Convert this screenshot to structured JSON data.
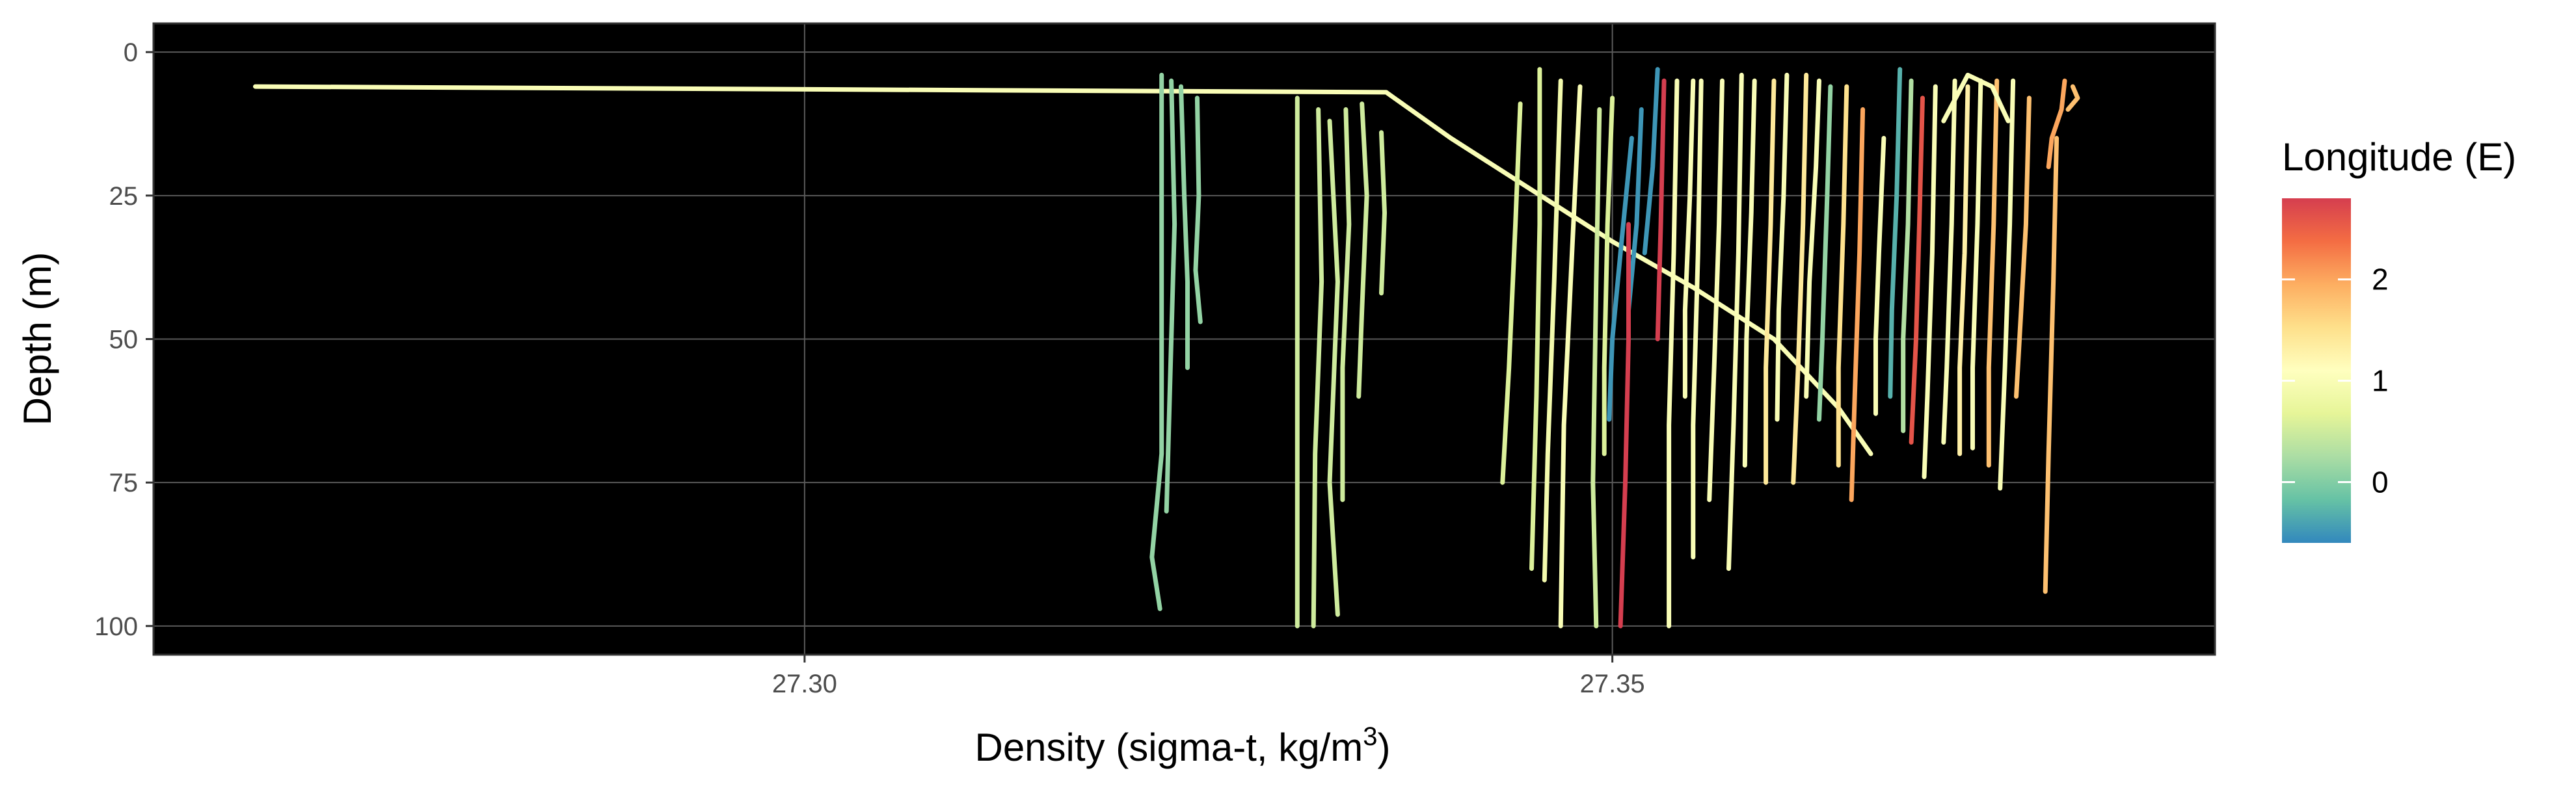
{
  "chart_data": {
    "type": "line",
    "xlabel_main": "Density (sigma-t, kg/m",
    "xlabel_sup": "3",
    "xlabel_end": ")",
    "ylabel": "Depth (m)",
    "xlim": [
      27.2597,
      27.3873
    ],
    "ylim": [
      105,
      -5
    ],
    "y_reversed": true,
    "x_ticks": [
      27.3,
      27.35
    ],
    "x_tick_labels": [
      "27.30",
      "27.35"
    ],
    "y_ticks": [
      0,
      25,
      50,
      75,
      100
    ],
    "y_tick_labels": [
      "0",
      "25",
      "50",
      "75",
      "100"
    ],
    "grid": true,
    "background": "#000000",
    "grid_color": "#5a5a5a",
    "legend": {
      "title": "Longitude (E)",
      "position": "right",
      "range": [
        -0.6,
        2.8
      ],
      "ticks": [
        0,
        1,
        2
      ],
      "tick_labels": [
        "0",
        "1",
        "2"
      ],
      "palette": [
        "#3288bd",
        "#66c2a5",
        "#abdda4",
        "#e6f598",
        "#ffffbf",
        "#fee08b",
        "#fdae61",
        "#f46d43",
        "#d53e4f"
      ]
    },
    "series": [
      {
        "lon": 1.0,
        "points": [
          [
            27.266,
            6
          ],
          [
            27.336,
            7
          ],
          [
            27.3365,
            8
          ],
          [
            27.34,
            15
          ],
          [
            27.345,
            24
          ],
          [
            27.35,
            33
          ],
          [
            27.355,
            41
          ],
          [
            27.36,
            50
          ],
          [
            27.364,
            62
          ],
          [
            27.366,
            70
          ]
        ]
      },
      {
        "lon": 0.1,
        "points": [
          [
            27.3221,
            4
          ],
          [
            27.3221,
            20
          ],
          [
            27.3221,
            45
          ],
          [
            27.3221,
            70
          ],
          [
            27.3215,
            88
          ],
          [
            27.322,
            97
          ]
        ]
      },
      {
        "lon": 0.1,
        "points": [
          [
            27.3227,
            5
          ],
          [
            27.3229,
            30
          ],
          [
            27.3226,
            60
          ],
          [
            27.3224,
            80
          ]
        ]
      },
      {
        "lon": 0.1,
        "points": [
          [
            27.3233,
            6
          ],
          [
            27.3235,
            25
          ],
          [
            27.3237,
            40
          ],
          [
            27.3237,
            55
          ]
        ]
      },
      {
        "lon": 0.1,
        "points": [
          [
            27.3243,
            8
          ],
          [
            27.3244,
            25
          ],
          [
            27.3242,
            38
          ],
          [
            27.3245,
            47
          ]
        ]
      },
      {
        "lon": 0.5,
        "points": [
          [
            27.3305,
            8
          ],
          [
            27.3305,
            40
          ],
          [
            27.3305,
            70
          ],
          [
            27.3305,
            100
          ]
        ]
      },
      {
        "lon": 0.5,
        "points": [
          [
            27.3318,
            10
          ],
          [
            27.332,
            40
          ],
          [
            27.3316,
            70
          ],
          [
            27.3315,
            100
          ]
        ]
      },
      {
        "lon": 0.5,
        "points": [
          [
            27.3325,
            12
          ],
          [
            27.333,
            40
          ],
          [
            27.3325,
            75
          ],
          [
            27.333,
            98
          ]
        ]
      },
      {
        "lon": 0.5,
        "points": [
          [
            27.3335,
            10
          ],
          [
            27.3337,
            30
          ],
          [
            27.3333,
            55
          ],
          [
            27.3333,
            78
          ]
        ]
      },
      {
        "lon": 0.5,
        "points": [
          [
            27.3345,
            9
          ],
          [
            27.3348,
            25
          ],
          [
            27.3345,
            45
          ],
          [
            27.3343,
            60
          ]
        ]
      },
      {
        "lon": 0.5,
        "points": [
          [
            27.3357,
            14
          ],
          [
            27.3359,
            28
          ],
          [
            27.3357,
            42
          ]
        ]
      },
      {
        "lon": 0.6,
        "points": [
          [
            27.3443,
            9
          ],
          [
            27.344,
            30
          ],
          [
            27.3436,
            55
          ],
          [
            27.3432,
            75
          ]
        ]
      },
      {
        "lon": 0.6,
        "points": [
          [
            27.3455,
            3
          ],
          [
            27.3455,
            30
          ],
          [
            27.3453,
            60
          ],
          [
            27.345,
            90
          ]
        ]
      },
      {
        "lon": 0.9,
        "points": [
          [
            27.3468,
            5
          ],
          [
            27.3464,
            40
          ],
          [
            27.346,
            70
          ],
          [
            27.3458,
            92
          ]
        ]
      },
      {
        "lon": 1.0,
        "points": [
          [
            27.348,
            6
          ],
          [
            27.3475,
            35
          ],
          [
            27.347,
            65
          ],
          [
            27.3468,
            100
          ]
        ]
      },
      {
        "lon": 0.5,
        "points": [
          [
            27.3492,
            10
          ],
          [
            27.349,
            40
          ],
          [
            27.3488,
            75
          ],
          [
            27.349,
            100
          ]
        ]
      },
      {
        "lon": 0.6,
        "points": [
          [
            27.35,
            8
          ],
          [
            27.3497,
            30
          ],
          [
            27.3495,
            55
          ],
          [
            27.3495,
            70
          ]
        ]
      },
      {
        "lon": -0.5,
        "points": [
          [
            27.3512,
            15
          ],
          [
            27.3505,
            35
          ],
          [
            27.35,
            50
          ],
          [
            27.3498,
            64
          ]
        ]
      },
      {
        "lon": -0.5,
        "points": [
          [
            27.3518,
            10
          ],
          [
            27.3515,
            30
          ],
          [
            27.351,
            45
          ]
        ]
      },
      {
        "lon": -0.5,
        "points": [
          [
            27.3528,
            3
          ],
          [
            27.3525,
            20
          ],
          [
            27.352,
            35
          ]
        ]
      },
      {
        "lon": 2.8,
        "points": [
          [
            27.351,
            30
          ],
          [
            27.351,
            50
          ],
          [
            27.3508,
            75
          ],
          [
            27.3505,
            100
          ]
        ]
      },
      {
        "lon": 2.8,
        "points": [
          [
            27.3532,
            5
          ],
          [
            27.353,
            30
          ],
          [
            27.3528,
            50
          ]
        ]
      },
      {
        "lon": 1.0,
        "points": [
          [
            27.354,
            5
          ],
          [
            27.3538,
            35
          ],
          [
            27.3535,
            65
          ],
          [
            27.3535,
            100
          ]
        ]
      },
      {
        "lon": 1.0,
        "points": [
          [
            27.355,
            5
          ],
          [
            27.3548,
            25
          ],
          [
            27.3545,
            45
          ],
          [
            27.3545,
            60
          ]
        ]
      },
      {
        "lon": 1.0,
        "points": [
          [
            27.3555,
            5
          ],
          [
            27.3553,
            35
          ],
          [
            27.355,
            65
          ],
          [
            27.355,
            88
          ]
        ]
      },
      {
        "lon": 1.0,
        "points": [
          [
            27.3568,
            5
          ],
          [
            27.3566,
            30
          ],
          [
            27.3563,
            55
          ],
          [
            27.356,
            78
          ]
        ]
      },
      {
        "lon": 1.0,
        "points": [
          [
            27.358,
            4
          ],
          [
            27.3578,
            35
          ],
          [
            27.3575,
            65
          ],
          [
            27.3572,
            90
          ]
        ]
      },
      {
        "lon": 1.0,
        "points": [
          [
            27.3588,
            5
          ],
          [
            27.3586,
            28
          ],
          [
            27.3583,
            50
          ],
          [
            27.3582,
            72
          ]
        ]
      },
      {
        "lon": 1.4,
        "points": [
          [
            27.36,
            5
          ],
          [
            27.3598,
            30
          ],
          [
            27.3595,
            55
          ],
          [
            27.3595,
            75
          ]
        ]
      },
      {
        "lon": 1.0,
        "points": [
          [
            27.3608,
            4
          ],
          [
            27.3606,
            25
          ],
          [
            27.3603,
            45
          ],
          [
            27.3602,
            64
          ]
        ]
      },
      {
        "lon": 1.4,
        "points": [
          [
            27.362,
            4
          ],
          [
            27.3618,
            30
          ],
          [
            27.3615,
            55
          ],
          [
            27.3612,
            75
          ]
        ]
      },
      {
        "lon": 1.0,
        "points": [
          [
            27.3628,
            5
          ],
          [
            27.3626,
            20
          ],
          [
            27.3622,
            40
          ],
          [
            27.362,
            60
          ]
        ]
      },
      {
        "lon": 0.1,
        "points": [
          [
            27.3635,
            6
          ],
          [
            27.3633,
            25
          ],
          [
            27.363,
            50
          ],
          [
            27.3628,
            64
          ]
        ]
      },
      {
        "lon": 1.5,
        "points": [
          [
            27.3645,
            6
          ],
          [
            27.3643,
            30
          ],
          [
            27.364,
            55
          ],
          [
            27.364,
            72
          ]
        ]
      },
      {
        "lon": 2.0,
        "points": [
          [
            27.3655,
            10
          ],
          [
            27.3653,
            35
          ],
          [
            27.365,
            60
          ],
          [
            27.3648,
            78
          ]
        ]
      },
      {
        "lon": 1.0,
        "points": [
          [
            27.3668,
            15
          ],
          [
            27.3665,
            35
          ],
          [
            27.3663,
            50
          ],
          [
            27.3663,
            63
          ]
        ]
      },
      {
        "lon": -0.3,
        "points": [
          [
            27.3678,
            3
          ],
          [
            27.3676,
            25
          ],
          [
            27.3673,
            45
          ],
          [
            27.3672,
            60
          ]
        ]
      },
      {
        "lon": 0.3,
        "points": [
          [
            27.3685,
            5
          ],
          [
            27.3683,
            30
          ],
          [
            27.368,
            50
          ],
          [
            27.368,
            66
          ]
        ]
      },
      {
        "lon": 2.6,
        "points": [
          [
            27.3692,
            8
          ],
          [
            27.369,
            30
          ],
          [
            27.3688,
            50
          ],
          [
            27.3685,
            68
          ]
        ]
      },
      {
        "lon": 1.0,
        "points": [
          [
            27.37,
            6
          ],
          [
            27.3698,
            35
          ],
          [
            27.3695,
            60
          ],
          [
            27.3693,
            74
          ]
        ]
      },
      {
        "lon": 1.0,
        "points": [
          [
            27.3712,
            5
          ],
          [
            27.371,
            30
          ],
          [
            27.3707,
            55
          ],
          [
            27.3705,
            68
          ]
        ]
      },
      {
        "lon": 1.3,
        "points": [
          [
            27.372,
            6
          ],
          [
            27.3718,
            35
          ],
          [
            27.3715,
            55
          ],
          [
            27.3715,
            70
          ]
        ]
      },
      {
        "lon": 1.0,
        "points": [
          [
            27.3728,
            5
          ],
          [
            27.3726,
            30
          ],
          [
            27.3723,
            55
          ],
          [
            27.3723,
            69
          ]
        ]
      },
      {
        "lon": 1.8,
        "points": [
          [
            27.3738,
            5
          ],
          [
            27.3736,
            30
          ],
          [
            27.3733,
            55
          ],
          [
            27.3733,
            72
          ]
        ]
      },
      {
        "lon": 1.0,
        "points": [
          [
            27.3748,
            5
          ],
          [
            27.3746,
            30
          ],
          [
            27.3743,
            55
          ],
          [
            27.374,
            76
          ]
        ]
      },
      {
        "lon": 1.8,
        "points": [
          [
            27.3758,
            8
          ],
          [
            27.3756,
            30
          ],
          [
            27.3753,
            45
          ],
          [
            27.375,
            60
          ]
        ]
      },
      {
        "lon": 1.8,
        "points": [
          [
            27.3775,
            15
          ],
          [
            27.3773,
            40
          ],
          [
            27.377,
            70
          ],
          [
            27.3768,
            94
          ]
        ]
      },
      {
        "lon": 2.0,
        "points": [
          [
            27.378,
            5
          ],
          [
            27.3778,
            10
          ],
          [
            27.3772,
            15
          ],
          [
            27.377,
            20
          ]
        ]
      },
      {
        "lon": 1.8,
        "points": [
          [
            27.3785,
            6
          ],
          [
            27.3788,
            8
          ],
          [
            27.3782,
            10
          ]
        ]
      },
      {
        "lon": 1.0,
        "points": [
          [
            27.3705,
            12
          ],
          [
            27.372,
            4
          ],
          [
            27.3735,
            6
          ],
          [
            27.3745,
            12
          ]
        ]
      }
    ]
  }
}
